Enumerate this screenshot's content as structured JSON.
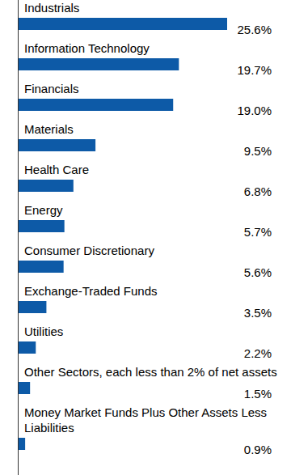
{
  "chart_data": {
    "type": "bar",
    "orientation": "horizontal",
    "categories": [
      "Industrials",
      "Information Technology",
      "Financials",
      "Materials",
      "Health Care",
      "Energy",
      "Consumer Discretionary",
      "Exchange-Traded Funds",
      "Utilities",
      "Other Sectors, each less than 2% of net assets",
      "Money Market Funds Plus Other Assets Less Liabilities"
    ],
    "values": [
      25.6,
      19.7,
      19.0,
      9.5,
      6.8,
      5.7,
      5.6,
      3.5,
      2.2,
      1.5,
      0.9
    ],
    "value_labels": [
      "25.6%",
      "19.7%",
      "19.0%",
      "9.5%",
      "6.8%",
      "5.7%",
      "5.6%",
      "3.5%",
      "2.2%",
      "1.5%",
      "0.9%"
    ],
    "color": "#0d5aa7",
    "xlim": [
      0,
      25.6
    ],
    "data_labels": true,
    "tick_labels": "y",
    "grid": false
  }
}
